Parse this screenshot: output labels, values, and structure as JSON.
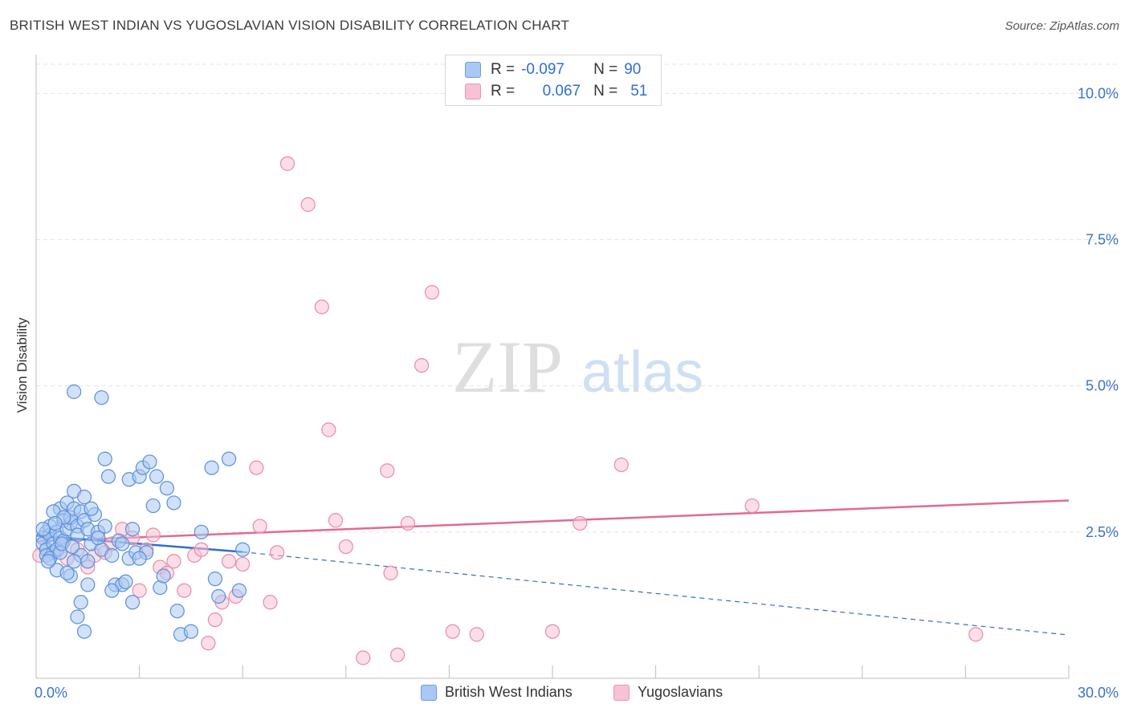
{
  "header": {
    "title": "BRITISH WEST INDIAN VS YUGOSLAVIAN VISION DISABILITY CORRELATION CHART",
    "source": "Source: ZipAtlas.com"
  },
  "watermark": {
    "zip": "ZIP",
    "atlas": "atlas"
  },
  "legend": {
    "rows": [
      {
        "r_label": "R =",
        "r_value": "-0.097",
        "n_label": "N =",
        "n_value": "90",
        "color": "#7aaaf0"
      },
      {
        "r_label": "R =",
        "r_value": "0.067",
        "n_label": "N =",
        "n_value": "51",
        "color": "#f2a0ba"
      }
    ]
  },
  "bottom_legend": [
    {
      "label": "British West Indians",
      "color": "#7aaaf0"
    },
    {
      "label": "Yugoslavians",
      "color": "#f2a0ba"
    }
  ],
  "colors": {
    "blue_fill": "#a9c8f3",
    "blue_stroke": "#5b8fdc",
    "blue_line": "#2f6fce",
    "pink_fill": "#f7c2d3",
    "pink_stroke": "#e98aaa",
    "pink_line": "#e26a93",
    "axis_label": "#3b73c9",
    "grid": "#e3e3e3"
  },
  "chart_data": {
    "type": "scatter",
    "title": "BRITISH WEST INDIAN VS YUGOSLAVIAN VISION DISABILITY CORRELATION CHART",
    "xlabel": "",
    "ylabel": "Vision Disability",
    "xlim": [
      0,
      30
    ],
    "ylim": [
      0,
      10.5
    ],
    "x_tick_labels": [
      "0.0%",
      "30.0%"
    ],
    "y_ticks": [
      2.5,
      5.0,
      7.5,
      10.0
    ],
    "y_tick_labels": [
      "2.5%",
      "5.0%",
      "7.5%",
      "10.0%"
    ],
    "grid": true,
    "legend_position": "top-center",
    "series": [
      {
        "name": "British West Indians",
        "trend": {
          "x": [
            0,
            6.0
          ],
          "y": [
            2.44,
            2.16
          ],
          "dashed_to": [
            30,
            0.74
          ]
        },
        "points": [
          [
            0.2,
            2.4
          ],
          [
            0.2,
            2.3
          ],
          [
            0.3,
            2.5
          ],
          [
            0.3,
            2.2
          ],
          [
            0.4,
            2.45
          ],
          [
            0.4,
            2.6
          ],
          [
            0.5,
            2.3
          ],
          [
            0.5,
            2.15
          ],
          [
            0.6,
            2.5
          ],
          [
            0.6,
            2.2
          ],
          [
            0.7,
            2.9
          ],
          [
            0.7,
            2.4
          ],
          [
            0.8,
            2.7
          ],
          [
            0.8,
            2.35
          ],
          [
            0.9,
            3.0
          ],
          [
            0.9,
            2.55
          ],
          [
            1.0,
            2.65
          ],
          [
            1.0,
            2.75
          ],
          [
            1.1,
            2.9
          ],
          [
            1.1,
            3.2
          ],
          [
            1.2,
            2.6
          ],
          [
            1.2,
            2.45
          ],
          [
            1.3,
            2.85
          ],
          [
            1.3,
            2.1
          ],
          [
            1.4,
            2.7
          ],
          [
            1.4,
            3.1
          ],
          [
            1.5,
            2.55
          ],
          [
            1.5,
            2.0
          ],
          [
            1.6,
            2.3
          ],
          [
            1.7,
            2.8
          ],
          [
            1.8,
            2.5
          ],
          [
            1.9,
            2.2
          ],
          [
            0.5,
            2.85
          ],
          [
            0.6,
            1.85
          ],
          [
            0.8,
            2.75
          ],
          [
            1.0,
            1.75
          ],
          [
            1.2,
            1.05
          ],
          [
            1.3,
            1.3
          ],
          [
            1.4,
            0.8
          ],
          [
            1.5,
            1.6
          ],
          [
            1.1,
            4.9
          ],
          [
            1.9,
            4.8
          ],
          [
            2.0,
            3.75
          ],
          [
            2.1,
            3.45
          ],
          [
            2.2,
            2.1
          ],
          [
            2.3,
            1.6
          ],
          [
            2.4,
            2.35
          ],
          [
            2.5,
            1.6
          ],
          [
            2.6,
            1.65
          ],
          [
            2.7,
            3.4
          ],
          [
            2.7,
            2.05
          ],
          [
            2.8,
            1.3
          ],
          [
            2.9,
            2.15
          ],
          [
            3.0,
            3.45
          ],
          [
            3.1,
            3.6
          ],
          [
            3.2,
            2.15
          ],
          [
            3.3,
            3.7
          ],
          [
            3.4,
            2.95
          ],
          [
            3.5,
            3.45
          ],
          [
            3.6,
            1.55
          ],
          [
            3.7,
            1.75
          ],
          [
            3.8,
            3.25
          ],
          [
            4.0,
            3.0
          ],
          [
            4.1,
            1.15
          ],
          [
            4.2,
            0.75
          ],
          [
            4.5,
            0.8
          ],
          [
            4.8,
            2.5
          ],
          [
            5.1,
            3.6
          ],
          [
            5.3,
            1.4
          ],
          [
            5.6,
            3.75
          ],
          [
            5.9,
            1.5
          ],
          [
            6.0,
            2.2
          ],
          [
            0.3,
            2.1
          ],
          [
            0.4,
            2.05
          ],
          [
            0.7,
            2.15
          ],
          [
            0.9,
            1.8
          ],
          [
            1.1,
            2.0
          ],
          [
            1.6,
            2.9
          ],
          [
            1.8,
            2.4
          ],
          [
            2.0,
            2.6
          ],
          [
            2.2,
            1.5
          ],
          [
            2.5,
            2.3
          ],
          [
            2.8,
            2.55
          ],
          [
            3.0,
            2.05
          ],
          [
            0.2,
            2.55
          ],
          [
            0.35,
            2.0
          ],
          [
            0.55,
            2.65
          ],
          [
            0.75,
            2.3
          ],
          [
            1.05,
            2.25
          ],
          [
            5.2,
            1.7
          ]
        ]
      },
      {
        "name": "Yugoslavians",
        "trend": {
          "x": [
            0,
            30
          ],
          "y": [
            2.34,
            3.04
          ]
        },
        "points": [
          [
            0.1,
            2.1
          ],
          [
            0.3,
            2.2
          ],
          [
            0.5,
            2.15
          ],
          [
            0.7,
            2.3
          ],
          [
            0.9,
            2.05
          ],
          [
            1.2,
            2.2
          ],
          [
            1.5,
            1.9
          ],
          [
            1.7,
            2.1
          ],
          [
            2.0,
            2.15
          ],
          [
            2.2,
            2.3
          ],
          [
            2.5,
            2.55
          ],
          [
            2.8,
            2.4
          ],
          [
            3.0,
            1.5
          ],
          [
            3.2,
            2.2
          ],
          [
            3.4,
            2.45
          ],
          [
            3.6,
            1.9
          ],
          [
            3.8,
            1.8
          ],
          [
            4.0,
            2.0
          ],
          [
            4.3,
            1.5
          ],
          [
            4.6,
            2.1
          ],
          [
            4.8,
            2.2
          ],
          [
            5.0,
            0.6
          ],
          [
            5.2,
            1.0
          ],
          [
            5.4,
            1.3
          ],
          [
            5.6,
            2.0
          ],
          [
            5.8,
            1.4
          ],
          [
            6.0,
            1.95
          ],
          [
            6.4,
            3.6
          ],
          [
            6.5,
            2.6
          ],
          [
            6.8,
            1.3
          ],
          [
            7.0,
            2.15
          ],
          [
            7.3,
            8.8
          ],
          [
            7.9,
            8.1
          ],
          [
            8.3,
            6.35
          ],
          [
            8.5,
            4.25
          ],
          [
            8.7,
            2.7
          ],
          [
            9.0,
            2.25
          ],
          [
            9.5,
            0.35
          ],
          [
            10.2,
            3.55
          ],
          [
            10.3,
            1.8
          ],
          [
            10.5,
            0.4
          ],
          [
            10.8,
            2.65
          ],
          [
            11.2,
            5.35
          ],
          [
            11.5,
            6.6
          ],
          [
            12.1,
            0.8
          ],
          [
            12.8,
            0.75
          ],
          [
            15.0,
            0.8
          ],
          [
            15.8,
            2.65
          ],
          [
            17.0,
            3.65
          ],
          [
            20.8,
            2.95
          ],
          [
            27.3,
            0.75
          ]
        ]
      }
    ]
  }
}
